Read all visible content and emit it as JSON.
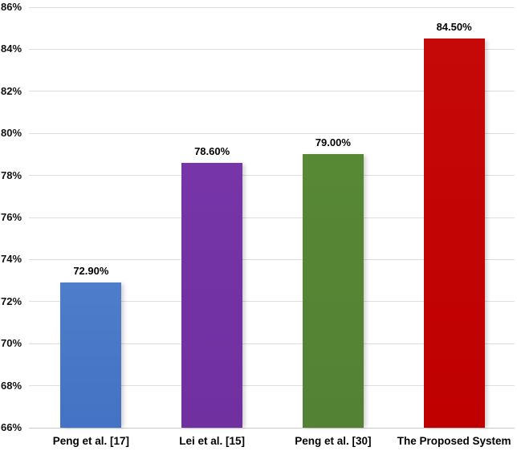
{
  "chart_data": {
    "type": "bar",
    "title": "",
    "categories": [
      "Peng et al. [17]",
      "Lei et al. [15]",
      "Peng et al. [30]",
      "The Proposed System"
    ],
    "values": [
      72.9,
      78.6,
      79.0,
      84.5
    ],
    "value_labels": [
      "72.90%",
      "78.60%",
      "79.00%",
      "84.50%"
    ],
    "bar_colors": [
      "#4472C4",
      "#7030A0",
      "#548235",
      "#C00000"
    ],
    "bar_colors_light": [
      "#4E7DCB",
      "#7635A8",
      "#578834",
      "#C50808"
    ],
    "xlabel": "",
    "ylabel": "",
    "ylim": [
      66,
      86
    ],
    "ytick_step": 2,
    "ytick_labels": [
      "66%",
      "68%",
      "70%",
      "72%",
      "74%",
      "76%",
      "78%",
      "80%",
      "82%",
      "84%",
      "86%"
    ],
    "grid": "horizontal-gridlines",
    "legend": "none"
  },
  "colors": {
    "background": "#FFFFFF",
    "gridline": "#DEDEDE",
    "axis_line": "#C9C9C9",
    "tick_text": "#111111",
    "label_text": "#000000"
  }
}
